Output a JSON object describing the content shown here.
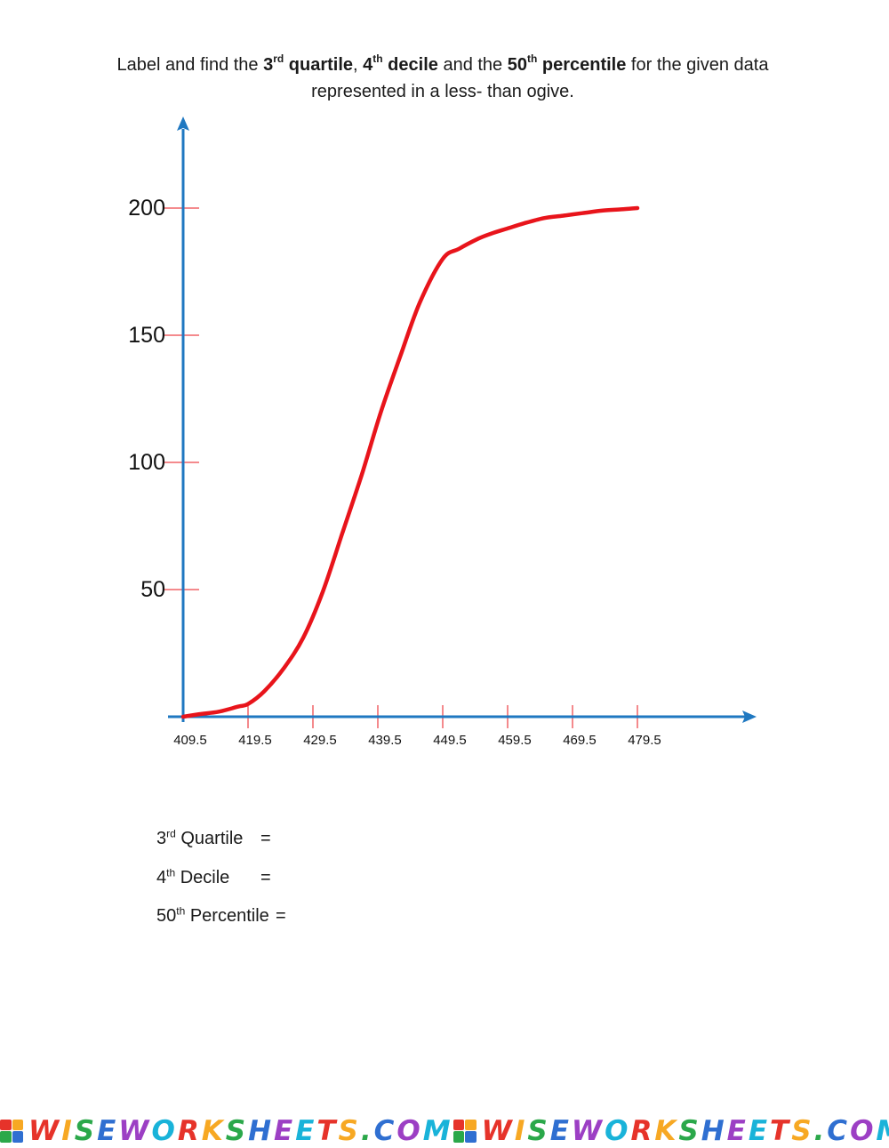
{
  "instruction": {
    "line1_a": "Label and find the ",
    "q_num": "3",
    "q_sup": "rd",
    "q_word": " quartile",
    "comma": ", ",
    "d_num": "4",
    "d_sup": "th",
    "d_word": " decile",
    "and_the": " and the ",
    "p_num": "50",
    "p_sup": "th",
    "p_word": " percentile",
    "line1_b": " for the given data",
    "line2": "represented in a less- than ogive."
  },
  "chart_data": {
    "type": "line",
    "title": "",
    "xlabel": "",
    "ylabel": "",
    "x_ticks": [
      "409.5",
      "419.5",
      "429.5",
      "439.5",
      "449.5",
      "459.5",
      "469.5",
      "479.5"
    ],
    "y_ticks": [
      "50",
      "100",
      "150",
      "200"
    ],
    "xlim": [
      409.5,
      479.5
    ],
    "ylim": [
      0,
      200
    ],
    "series": [
      {
        "color": "#e8141b",
        "x": [
          409.5,
          412,
          415,
          418,
          419.5,
          422,
          425,
          428,
          431,
          434,
          437,
          440,
          443,
          446,
          449.5,
          452,
          455,
          457,
          459.5,
          462,
          465,
          468,
          471,
          474,
          477,
          479.5
        ],
        "y": [
          0,
          1,
          2,
          4,
          5,
          10,
          19,
          31,
          49,
          72,
          95,
          120,
          142,
          163,
          180,
          184,
          188,
          190,
          192,
          194,
          196,
          197,
          198,
          199,
          199.5,
          200
        ]
      }
    ],
    "axis_color": "#1f78c1",
    "tick_color": "#e8141b",
    "grid": false,
    "legend": "none"
  },
  "answers": [
    {
      "num": "3",
      "sup": "rd",
      "label": " Quartile",
      "eq": "="
    },
    {
      "num": "4",
      "sup": "th",
      "label": " Decile",
      "eq": "="
    },
    {
      "num": "50",
      "sup": "th",
      "label": " Percentile",
      "eq": "="
    }
  ],
  "footer": {
    "brand": "WISEWORKSHEETS.COM",
    "logo_letters": [
      "W",
      "I",
      "S",
      "E"
    ],
    "colors": [
      "#e6332a",
      "#f7a823",
      "#2ba84a",
      "#2f6fd1",
      "#9c3fc4",
      "#19b3d9"
    ]
  }
}
